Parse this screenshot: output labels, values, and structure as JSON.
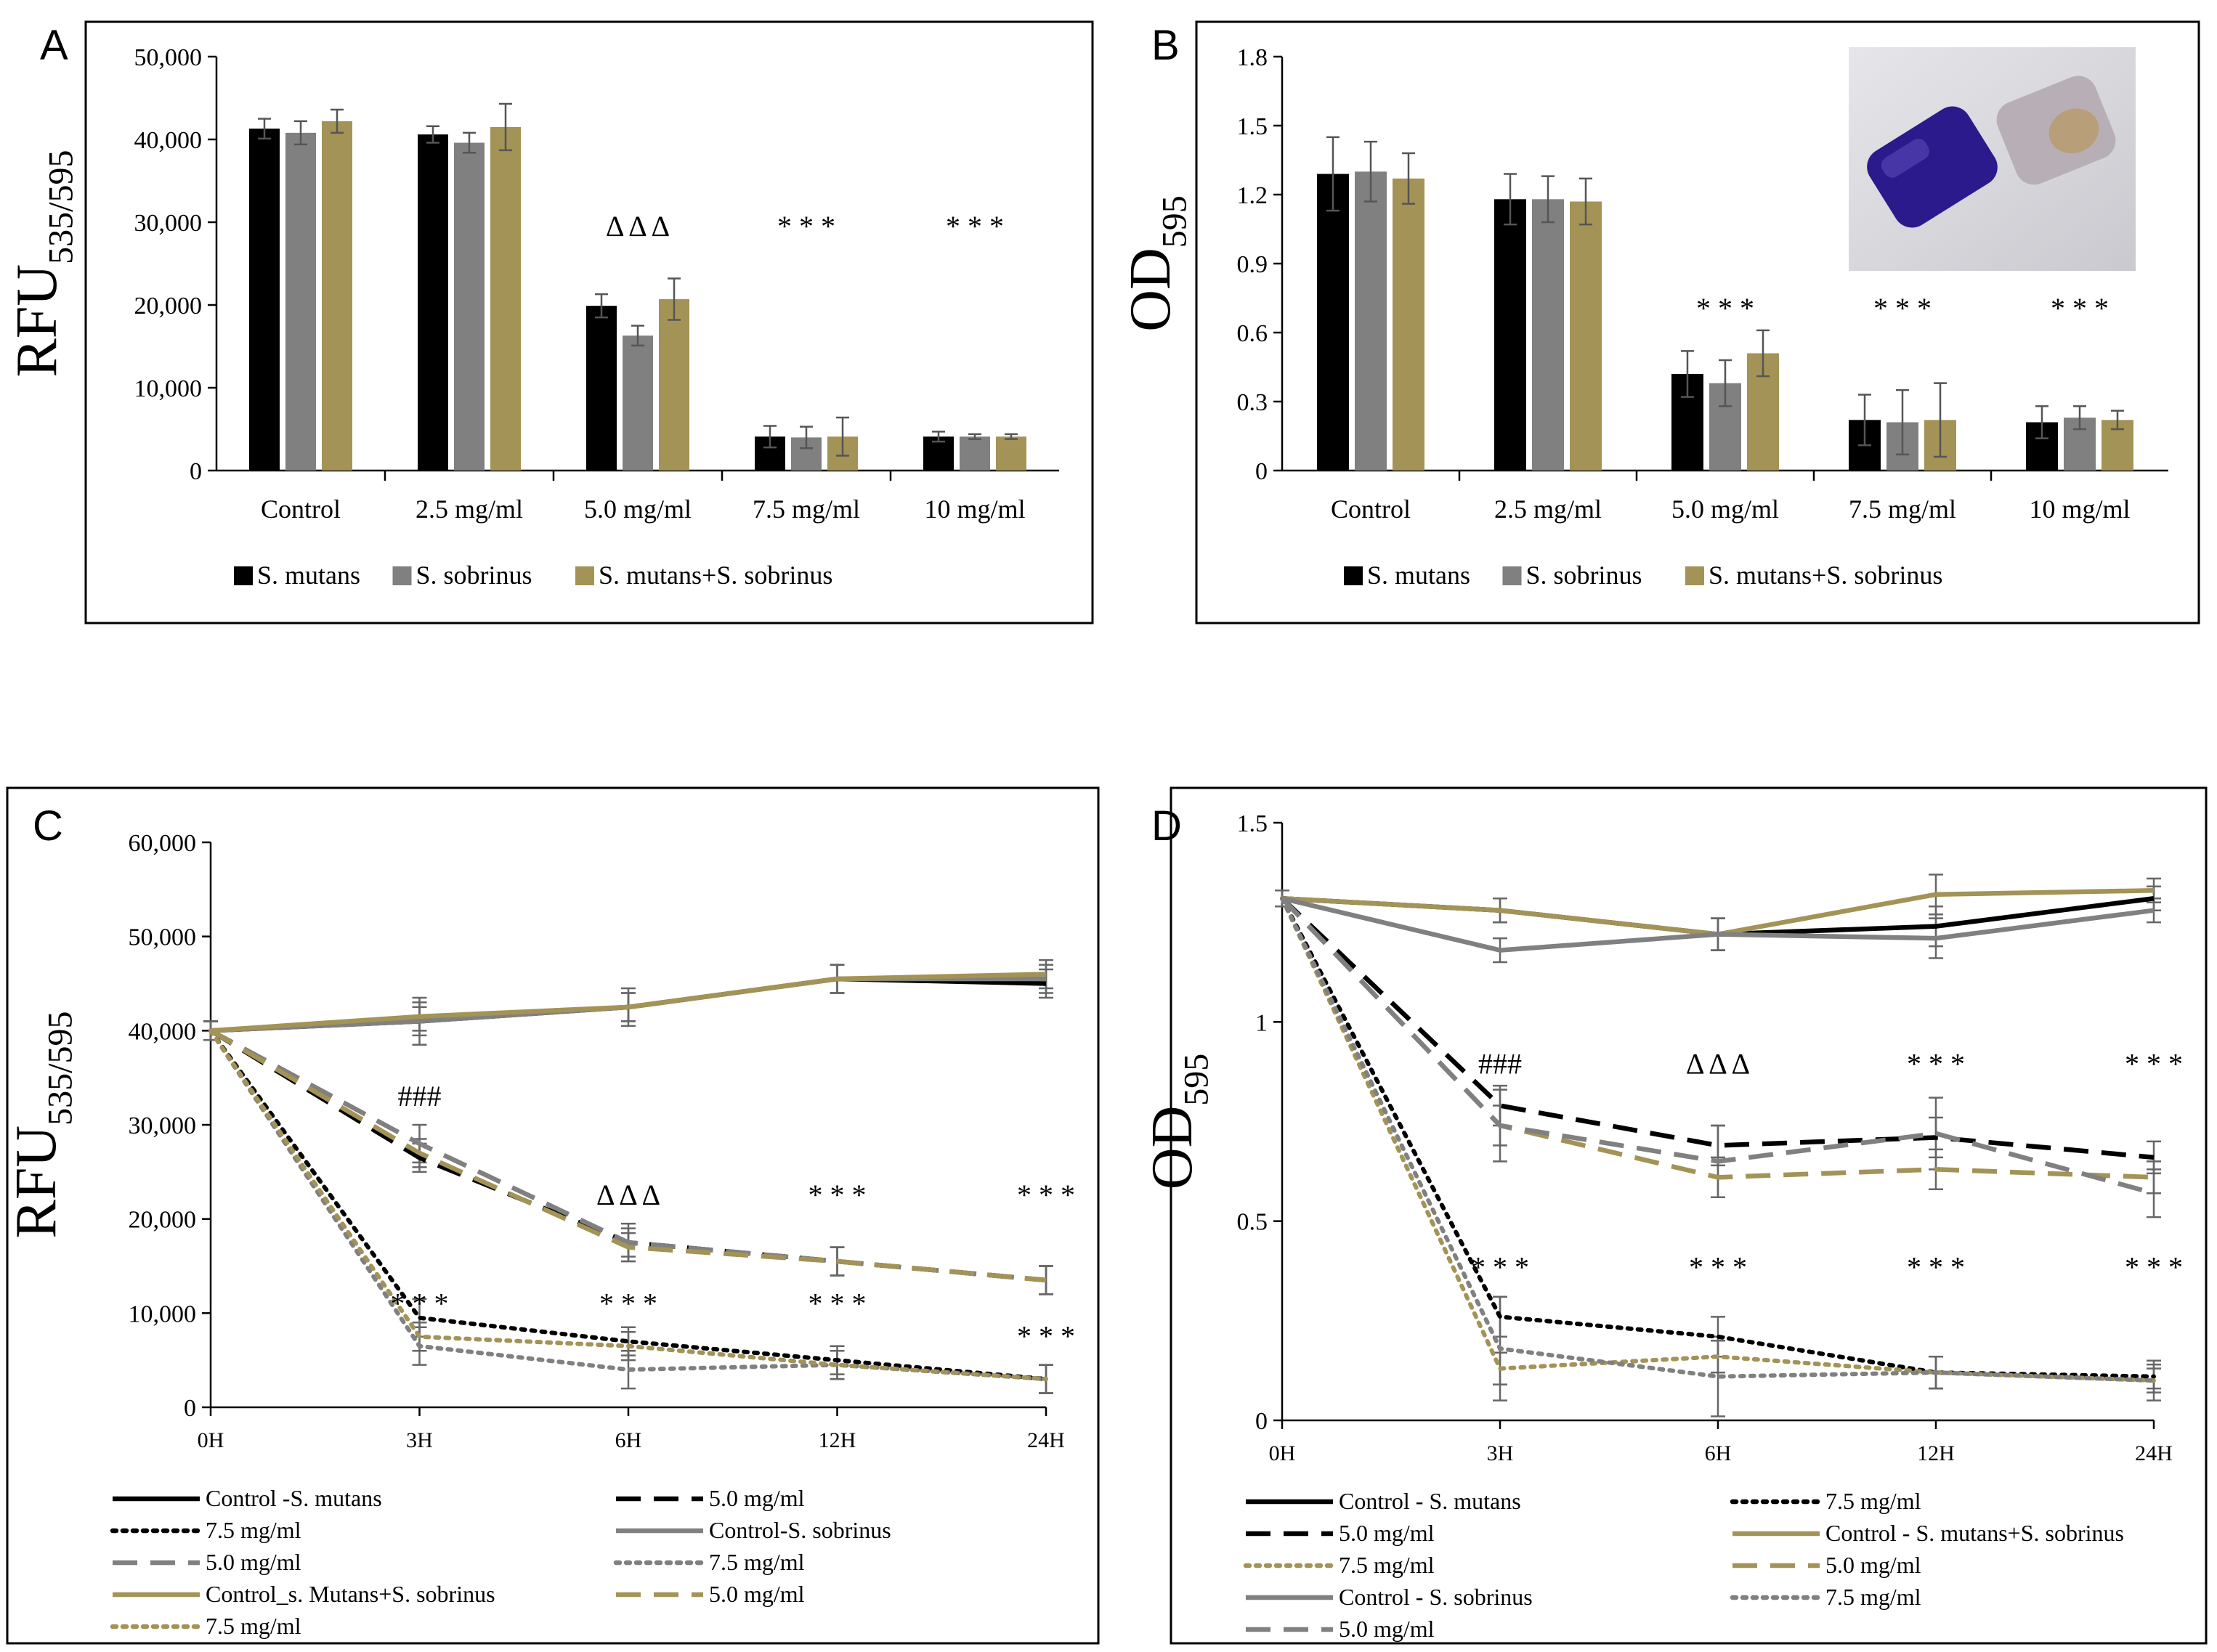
{
  "colors": {
    "black": "#000000",
    "gray": "#808080",
    "gold": "#A39356"
  },
  "chart_data": [
    {
      "panel": "A",
      "type": "bar",
      "ylabel_main": "RFU",
      "ylabel_sub": "535/595",
      "ylim": [
        0,
        50000
      ],
      "yticks": [
        "50,000",
        "40,000",
        "30,000",
        "20,000",
        "10,000",
        "0"
      ],
      "categories": [
        "Control",
        "2.5 mg/ml",
        "5.0 mg/ml",
        "7.5 mg/ml",
        "10 mg/ml"
      ],
      "series": [
        {
          "name": "S. mutans",
          "color": "#000000",
          "values": [
            41300,
            40600,
            19900,
            4100,
            4100
          ],
          "errors": [
            1200,
            1000,
            1400,
            1300,
            600
          ]
        },
        {
          "name": "S. sobrinus",
          "color": "#808080",
          "values": [
            40800,
            39600,
            16300,
            4000,
            4100
          ],
          "errors": [
            1400,
            1200,
            1200,
            1300,
            300
          ]
        },
        {
          "name": "S. mutans+S. sobrinus",
          "color": "#A39356",
          "values": [
            42200,
            41500,
            20700,
            4100,
            4100
          ],
          "errors": [
            1400,
            2800,
            2500,
            2300,
            300
          ]
        }
      ],
      "annotations": [
        {
          "category": 2,
          "text": "Δ Δ Δ"
        },
        {
          "category": 3,
          "text": "* * *"
        },
        {
          "category": 4,
          "text": "* * *"
        }
      ]
    },
    {
      "panel": "B",
      "type": "bar",
      "ylabel_main": "OD",
      "ylabel_sub": "595",
      "ylim": [
        0,
        1.8
      ],
      "yticks": [
        "1.8",
        "1.5",
        "1.2",
        "0.9",
        "0.6",
        "0.3",
        "0"
      ],
      "categories": [
        "Control",
        "2.5 mg/ml",
        "5.0 mg/ml",
        "7.5 mg/ml",
        "10 mg/ml"
      ],
      "series": [
        {
          "name": "S. mutans",
          "color": "#000000",
          "values": [
            1.29,
            1.18,
            0.42,
            0.22,
            0.21
          ],
          "errors": [
            0.16,
            0.11,
            0.1,
            0.11,
            0.07
          ]
        },
        {
          "name": "S. sobrinus",
          "color": "#808080",
          "values": [
            1.3,
            1.18,
            0.38,
            0.21,
            0.23
          ],
          "errors": [
            0.13,
            0.1,
            0.1,
            0.14,
            0.05
          ]
        },
        {
          "name": "S. mutans+S. sobrinus",
          "color": "#A39356",
          "values": [
            1.27,
            1.17,
            0.51,
            0.22,
            0.22
          ],
          "errors": [
            0.11,
            0.1,
            0.1,
            0.16,
            0.04
          ]
        }
      ],
      "annotations": [
        {
          "category": 2,
          "text": "* * *"
        },
        {
          "category": 3,
          "text": "* * *"
        },
        {
          "category": 4,
          "text": "* * *"
        }
      ]
    },
    {
      "panel": "C",
      "type": "line",
      "ylabel_main": "RFU",
      "ylabel_sub": "535/595",
      "ylim": [
        0,
        60000
      ],
      "yticks": [
        "60,000",
        "50,000",
        "40,000",
        "30,000",
        "20,000",
        "10,000",
        "0"
      ],
      "x": [
        "0H",
        "3H",
        "6H",
        "12H",
        "24H"
      ],
      "series": [
        {
          "name": "Control -S. mutans",
          "color": "#000000",
          "dash": "solid",
          "values": [
            40000,
            41000,
            42500,
            45500,
            45000
          ],
          "errors": [
            1000,
            1500,
            1500,
            1500,
            1500
          ]
        },
        {
          "name": "5.0 mg/ml",
          "color": "#000000",
          "dash": "dash",
          "values": [
            40000,
            26500,
            17500,
            15500,
            13500
          ],
          "errors": [
            1000,
            1500,
            1500,
            1500,
            1500
          ]
        },
        {
          "name": "7.5 mg/ml",
          "color": "#000000",
          "dash": "dot",
          "values": [
            40000,
            9500,
            7000,
            5000,
            3000
          ],
          "errors": [
            1000,
            2000,
            1500,
            1500,
            1500
          ]
        },
        {
          "name": "Control-S. sobrinus",
          "color": "#808080",
          "dash": "solid",
          "values": [
            40000,
            41000,
            42500,
            45500,
            45500
          ],
          "errors": [
            1000,
            2500,
            2000,
            1500,
            1500
          ]
        },
        {
          "name": "5.0 mg/ml",
          "color": "#808080",
          "dash": "dash",
          "values": [
            40000,
            28000,
            17500,
            15500,
            13500
          ],
          "errors": [
            1000,
            2000,
            2000,
            1500,
            1500
          ]
        },
        {
          "name": "7.5 mg/ml",
          "color": "#808080",
          "dash": "dot",
          "values": [
            40000,
            6500,
            4000,
            4500,
            3000
          ],
          "errors": [
            1000,
            2000,
            2000,
            1500,
            1500
          ]
        },
        {
          "name": "Control_s. Mutans+S. sobrinus",
          "color": "#A39356",
          "dash": "solid",
          "values": [
            40000,
            41500,
            42500,
            45500,
            46000
          ],
          "errors": [
            1000,
            1500,
            1500,
            1500,
            1500
          ]
        },
        {
          "name": "5.0 mg/ml",
          "color": "#A39356",
          "dash": "dash",
          "values": [
            40000,
            27000,
            17000,
            15500,
            13500
          ],
          "errors": [
            1000,
            1500,
            1500,
            1500,
            1500
          ]
        },
        {
          "name": "7.5 mg/ml",
          "color": "#A39356",
          "dash": "dot",
          "values": [
            40000,
            7500,
            6500,
            4500,
            3000
          ],
          "errors": [
            1000,
            1500,
            1500,
            1500,
            1500
          ]
        }
      ],
      "annotations": [
        {
          "text": "###",
          "x": 1,
          "y": 32000
        },
        {
          "text": "Δ Δ Δ",
          "x": 2,
          "y": 21500
        },
        {
          "text": "* * *",
          "x": 3,
          "y": 21500
        },
        {
          "text": "* * *",
          "x": 4,
          "y": 21500
        },
        {
          "text": "* * *",
          "x": 1,
          "y": 10000
        },
        {
          "text": "* * *",
          "x": 2,
          "y": 10000
        },
        {
          "text": "* * *",
          "x": 3,
          "y": 10000
        },
        {
          "text": "* * *",
          "x": 4,
          "y": 6500
        }
      ]
    },
    {
      "panel": "D",
      "type": "line",
      "ylabel_main": "OD",
      "ylabel_sub": "595",
      "ylim": [
        0,
        1.5
      ],
      "yticks": [
        "1.5",
        "1",
        "0.5",
        "0"
      ],
      "x": [
        "0H",
        "3H",
        "6H",
        "12H",
        "24H"
      ],
      "series": [
        {
          "name": "Control - S. mutans",
          "color": "#000000",
          "dash": "solid",
          "values": [
            1.31,
            1.28,
            1.22,
            1.24,
            1.31
          ],
          "errors": [
            0.02,
            0.03,
            0.04,
            0.05,
            0.03
          ]
        },
        {
          "name": "7.5 mg/ml",
          "color": "#000000",
          "dash": "dot",
          "values": [
            1.31,
            0.26,
            0.21,
            0.12,
            0.11
          ],
          "errors": [
            0.02,
            0.05,
            0.05,
            0.04,
            0.03
          ]
        },
        {
          "name": "5.0 mg/ml",
          "color": "#000000",
          "dash": "dash",
          "values": [
            1.31,
            0.79,
            0.69,
            0.71,
            0.66
          ],
          "errors": [
            0.02,
            0.05,
            0.05,
            0.05,
            0.04
          ]
        },
        {
          "name": "Control - S. mutans+S. sobrinus",
          "color": "#A39356",
          "dash": "solid",
          "values": [
            1.31,
            1.28,
            1.22,
            1.32,
            1.33
          ],
          "errors": [
            0.02,
            0.03,
            0.04,
            0.05,
            0.03
          ]
        },
        {
          "name": "7.5 mg/ml",
          "color": "#A39356",
          "dash": "dot",
          "values": [
            1.31,
            0.13,
            0.16,
            0.12,
            0.1
          ],
          "errors": [
            0.02,
            0.04,
            0.04,
            0.04,
            0.03
          ]
        },
        {
          "name": "5.0 mg/ml",
          "color": "#A39356",
          "dash": "dash",
          "values": [
            1.31,
            0.74,
            0.61,
            0.63,
            0.61
          ],
          "errors": [
            0.02,
            0.05,
            0.05,
            0.05,
            0.04
          ]
        },
        {
          "name": "Control - S. sobrinus",
          "color": "#808080",
          "dash": "solid",
          "values": [
            1.31,
            1.18,
            1.22,
            1.21,
            1.28
          ],
          "errors": [
            0.02,
            0.03,
            0.04,
            0.05,
            0.03
          ]
        },
        {
          "name": "7.5 mg/ml",
          "color": "#808080",
          "dash": "dot",
          "values": [
            1.31,
            0.18,
            0.11,
            0.12,
            0.1
          ],
          "errors": [
            0.02,
            0.13,
            0.1,
            0.04,
            0.05
          ]
        },
        {
          "name": "5.0 mg/ml",
          "color": "#808080",
          "dash": "dash",
          "values": [
            1.31,
            0.74,
            0.65,
            0.72,
            0.57
          ],
          "errors": [
            0.02,
            0.09,
            0.09,
            0.09,
            0.06
          ]
        }
      ],
      "annotations": [
        {
          "text": "###",
          "x": 1,
          "y": 0.87
        },
        {
          "text": "Δ Δ Δ",
          "x": 2,
          "y": 0.87
        },
        {
          "text": "* * *",
          "x": 3,
          "y": 0.87
        },
        {
          "text": "* * *",
          "x": 4,
          "y": 0.87
        },
        {
          "text": "* * *",
          "x": 1,
          "y": 0.36
        },
        {
          "text": "* * *",
          "x": 2,
          "y": 0.36
        },
        {
          "text": "* * *",
          "x": 3,
          "y": 0.36
        },
        {
          "text": "* * *",
          "x": 4,
          "y": 0.36
        }
      ]
    }
  ]
}
